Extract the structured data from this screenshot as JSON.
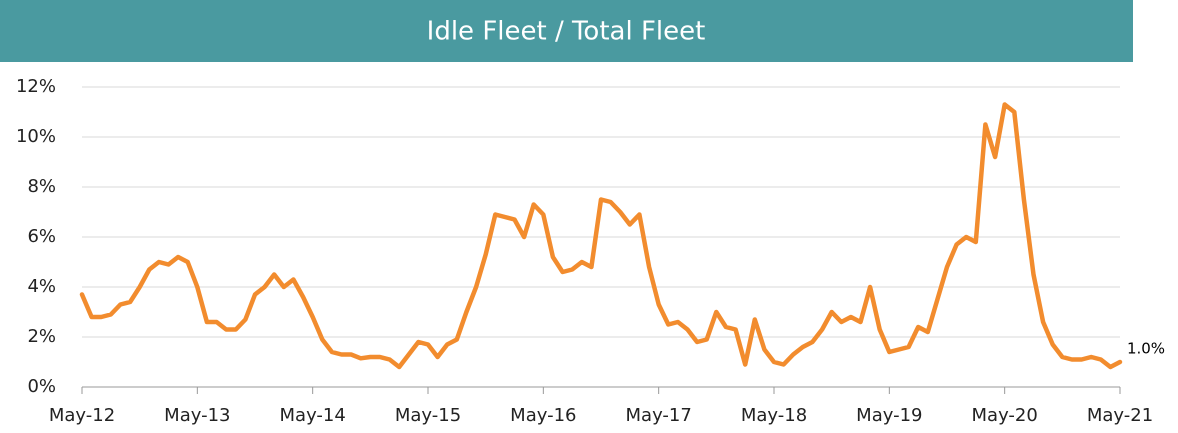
{
  "chart_data": {
    "type": "line",
    "title": "Idle Fleet / Total Fleet",
    "categories": [
      "May-12",
      null,
      null,
      null,
      null,
      null,
      null,
      null,
      null,
      null,
      null,
      null,
      "May-13",
      null,
      null,
      null,
      null,
      null,
      null,
      null,
      null,
      null,
      null,
      null,
      "May-14",
      null,
      null,
      null,
      null,
      null,
      null,
      null,
      null,
      null,
      null,
      null,
      "May-15",
      null,
      null,
      null,
      null,
      null,
      null,
      null,
      null,
      null,
      null,
      null,
      "May-16",
      null,
      null,
      null,
      null,
      null,
      null,
      null,
      null,
      null,
      null,
      null,
      "May-17",
      null,
      null,
      null,
      null,
      null,
      null,
      null,
      null,
      null,
      null,
      null,
      "May-18",
      null,
      null,
      null,
      null,
      null,
      null,
      null,
      null,
      null,
      null,
      null,
      "May-19",
      null,
      null,
      null,
      null,
      null,
      null,
      null,
      null,
      null,
      null,
      null,
      "May-20",
      null,
      null,
      null,
      null,
      null,
      null,
      null,
      null,
      null,
      null,
      null,
      "May-21"
    ],
    "values": [
      3.7,
      2.8,
      2.8,
      2.9,
      3.3,
      3.4,
      4.0,
      4.7,
      5.0,
      4.9,
      5.2,
      5.0,
      4.0,
      2.6,
      2.6,
      2.3,
      2.3,
      2.7,
      3.7,
      4.0,
      4.5,
      4.0,
      4.3,
      3.6,
      2.8,
      1.9,
      1.4,
      1.3,
      1.3,
      1.15,
      1.2,
      1.2,
      1.1,
      0.8,
      1.3,
      1.8,
      1.7,
      1.2,
      1.7,
      1.9,
      3.0,
      4.0,
      5.3,
      6.9,
      6.8,
      6.7,
      6.0,
      7.3,
      6.9,
      5.2,
      4.6,
      4.7,
      5.0,
      4.8,
      7.5,
      7.4,
      7.0,
      6.5,
      6.9,
      4.8,
      3.3,
      2.5,
      2.6,
      2.3,
      1.8,
      1.9,
      3.0,
      2.4,
      2.3,
      0.9,
      2.7,
      1.5,
      1.0,
      0.9,
      1.3,
      1.6,
      1.8,
      2.3,
      3.0,
      2.6,
      2.8,
      2.6,
      4.0,
      2.3,
      1.4,
      1.5,
      1.6,
      2.4,
      2.2,
      3.5,
      4.8,
      5.7,
      6.0,
      5.8,
      10.5,
      9.2,
      11.3,
      11.0,
      7.5,
      4.5,
      2.6,
      1.7,
      1.2,
      1.1,
      1.1,
      1.2,
      1.1,
      0.8,
      1.0
    ],
    "value_labels": [
      null,
      null,
      null,
      null,
      null,
      null,
      null,
      null,
      null,
      null,
      null,
      null,
      null,
      null,
      null,
      null,
      null,
      null,
      null,
      null,
      null,
      null,
      null,
      null,
      null,
      null,
      null,
      null,
      null,
      null,
      null,
      null,
      null,
      null,
      null,
      null,
      null,
      null,
      null,
      null,
      null,
      null,
      null,
      null,
      null,
      null,
      null,
      null,
      null,
      null,
      null,
      null,
      null,
      null,
      null,
      null,
      null,
      null,
      null,
      null,
      null,
      null,
      null,
      null,
      null,
      null,
      null,
      null,
      null,
      null,
      null,
      null,
      null,
      null,
      null,
      null,
      null,
      null,
      null,
      null,
      null,
      null,
      null,
      null,
      null,
      null,
      null,
      null,
      null,
      null,
      null,
      null,
      null,
      null,
      null,
      null,
      null,
      null,
      null,
      null,
      null,
      null,
      null,
      null,
      null,
      null,
      null,
      null,
      "1.0%"
    ],
    "color": "#f28c2e",
    "ylim": [
      0,
      12
    ],
    "yticks": [
      {
        "value": 0,
        "label": "0%"
      },
      {
        "value": 2,
        "label": "2%"
      },
      {
        "value": 4,
        "label": "4%"
      },
      {
        "value": 6,
        "label": "6%"
      },
      {
        "value": 8,
        "label": "8%"
      },
      {
        "value": 10,
        "label": "10%"
      },
      {
        "value": 12,
        "label": "12%"
      }
    ],
    "grid": true
  }
}
